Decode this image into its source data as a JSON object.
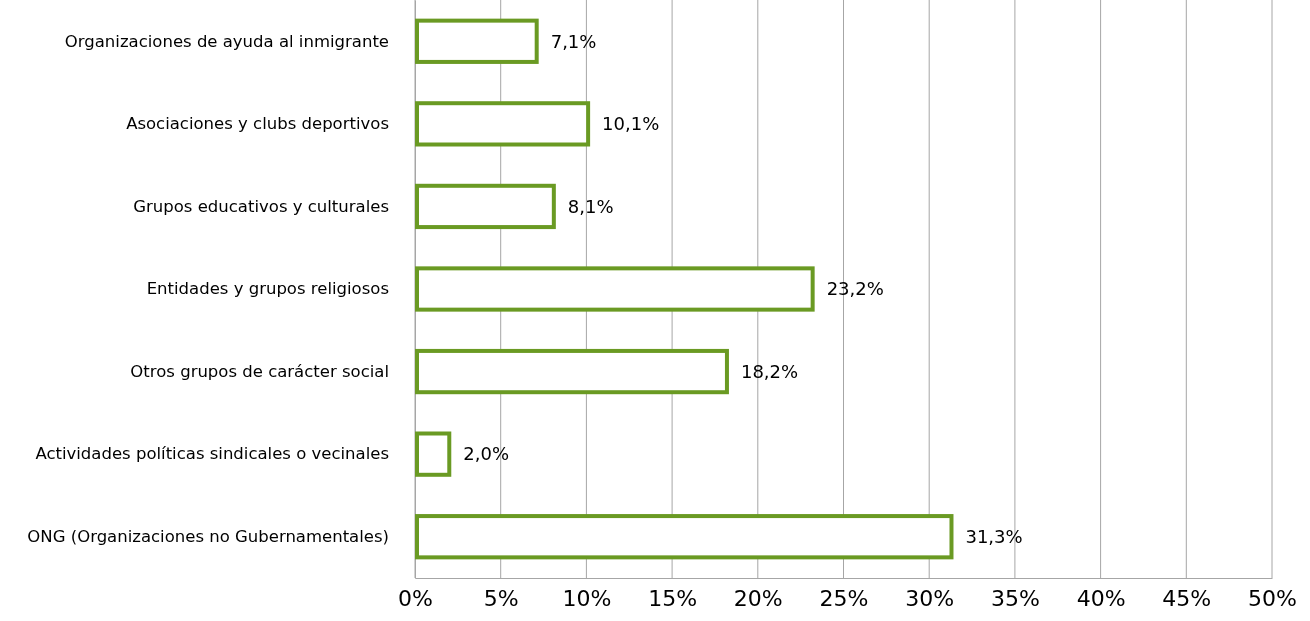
{
  "chart_data": {
    "type": "bar",
    "orientation": "horizontal",
    "categories": [
      "Organizaciones de ayuda al inmigrante",
      "Asociaciones y clubs deportivos",
      "Grupos educativos y culturales",
      "Entidades y grupos religiosos",
      "Otros grupos de carácter social",
      "Actividades políticas sindicales o vecinales",
      "ONG (Organizaciones no Gubernamentales)"
    ],
    "values": [
      7.1,
      10.1,
      8.1,
      23.2,
      18.2,
      2.0,
      31.3
    ],
    "value_labels": [
      "7,1%",
      "10,1%",
      "8,1%",
      "23,2%",
      "18,2%",
      "2,0%",
      "31,3%"
    ],
    "color": "#6a9a23",
    "xlim": [
      0,
      50
    ],
    "xticks": [
      {
        "value": 0,
        "label": "0%"
      },
      {
        "value": 5,
        "label": "5%"
      },
      {
        "value": 10,
        "label": "10%"
      },
      {
        "value": 15,
        "label": "15%"
      },
      {
        "value": 20,
        "label": "20%"
      },
      {
        "value": 25,
        "label": "25%"
      },
      {
        "value": 30,
        "label": "30%"
      },
      {
        "value": 35,
        "label": "35%"
      },
      {
        "value": 40,
        "label": "40%"
      },
      {
        "value": 45,
        "label": "45%"
      },
      {
        "value": 50,
        "label": "50%"
      }
    ],
    "grid": "x"
  }
}
